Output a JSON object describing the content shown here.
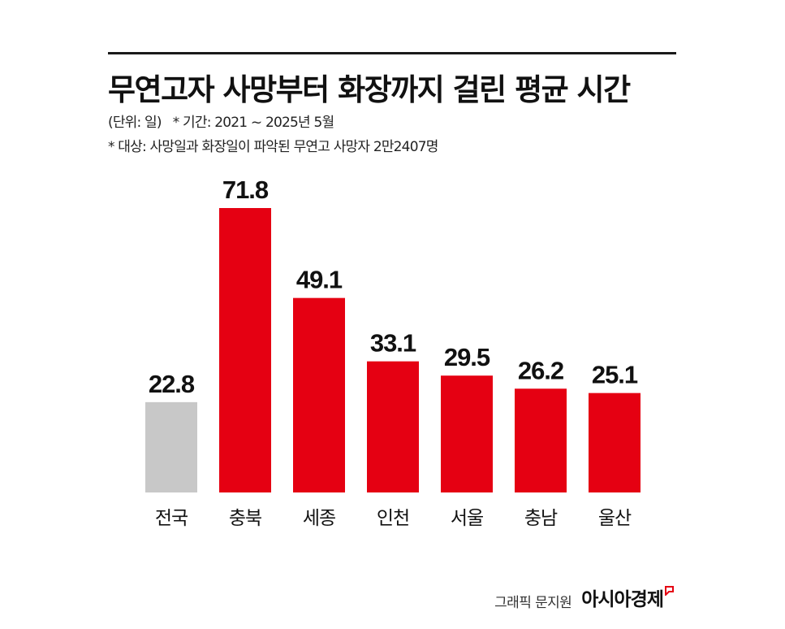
{
  "header": {
    "title": "무연고자 사망부터 화장까지 걸린 평균 시간",
    "unit": "(단위: 일)",
    "period": "* 기간: 2021 ~ 2025년 5월",
    "target": "* 대상: 사망일과 화장일이 파악된 무연고 사망자 2만2407명"
  },
  "footer": {
    "byline": "그래픽 문지원",
    "brand": "아시아경제"
  },
  "colors": {
    "highlight": "#e50012",
    "baseline": "#c8c8c8",
    "rule": "#1a1a1a",
    "text": "#111111"
  },
  "chart_data": {
    "type": "bar",
    "title": "무연고자 사망부터 화장까지 걸린 평균 시간",
    "unit": "(단위: 일)",
    "categories": [
      "전국",
      "충북",
      "세종",
      "인천",
      "서울",
      "충남",
      "울산"
    ],
    "values": [
      22.8,
      71.8,
      49.1,
      33.1,
      29.5,
      26.2,
      25.1
    ],
    "value_labels": [
      "22.8",
      "71.8",
      "49.1",
      "33.1",
      "29.5",
      "26.2",
      "25.1"
    ],
    "bar_colors": [
      "#c8c8c8",
      "#e50012",
      "#e50012",
      "#e50012",
      "#e50012",
      "#e50012",
      "#e50012"
    ],
    "grid": false,
    "axis_line": false,
    "legend": "none",
    "ylim": [
      0,
      71.8
    ]
  }
}
